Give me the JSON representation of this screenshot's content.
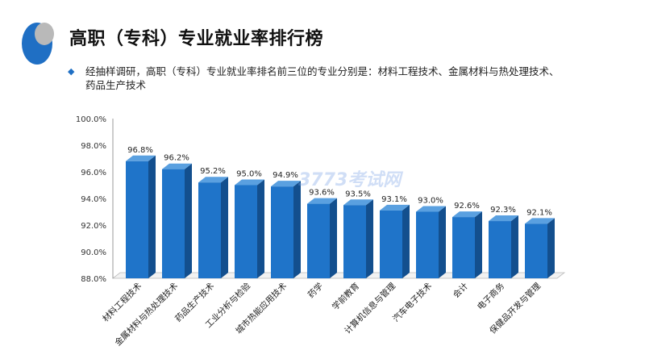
{
  "title": "高职（专科）专业就业率排行榜",
  "bullet": "经抽样调研，高职（专科）专业就业率排名前三位的专业分别是：材料工程技术、金属材料与热处理技术、药品生产技术",
  "watermark": "3773考试网",
  "colors": {
    "bar_front": "#1f74c9",
    "bar_side": "#134f8e",
    "bar_top": "#5aa0e0",
    "accent": "#1f6fc4"
  },
  "chart_data": {
    "type": "bar",
    "title": "",
    "xlabel": "",
    "ylabel": "",
    "ylim": [
      88,
      100
    ],
    "yticks": [
      "88.0%",
      "90.0%",
      "92.0%",
      "94.0%",
      "96.0%",
      "98.0%",
      "100.0%"
    ],
    "categories": [
      "材料工程技术",
      "金属材料与热处理技术",
      "药品生产技术",
      "工业分析与检验",
      "城市热能应用技术",
      "药学",
      "学前教育",
      "计算机信息与管理",
      "汽车电子技术",
      "会计",
      "电子商务",
      "保健品开发与管理"
    ],
    "values": [
      96.8,
      96.2,
      95.2,
      95.0,
      94.9,
      93.6,
      93.5,
      93.1,
      93.0,
      92.6,
      92.3,
      92.1
    ],
    "data_labels": [
      "96.8%",
      "96.2%",
      "95.2%",
      "95.0%",
      "94.9%",
      "93.6%",
      "93.5%",
      "93.1%",
      "93.0%",
      "92.6%",
      "92.3%",
      "92.1%"
    ],
    "grid": false,
    "legend": "none"
  }
}
